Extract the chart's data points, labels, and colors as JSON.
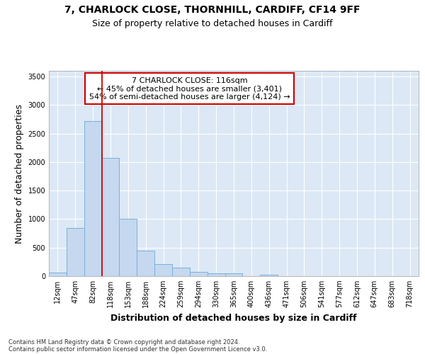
{
  "title1": "7, CHARLOCK CLOSE, THORNHILL, CARDIFF, CF14 9FF",
  "title2": "Size of property relative to detached houses in Cardiff",
  "xlabel": "Distribution of detached houses by size in Cardiff",
  "ylabel": "Number of detached properties",
  "categories": [
    "12sqm",
    "47sqm",
    "82sqm",
    "118sqm",
    "153sqm",
    "188sqm",
    "224sqm",
    "259sqm",
    "294sqm",
    "330sqm",
    "365sqm",
    "400sqm",
    "436sqm",
    "471sqm",
    "506sqm",
    "541sqm",
    "577sqm",
    "612sqm",
    "647sqm",
    "683sqm",
    "718sqm"
  ],
  "values": [
    65,
    845,
    2720,
    2070,
    1010,
    450,
    210,
    145,
    70,
    55,
    50,
    0,
    30,
    0,
    0,
    0,
    0,
    0,
    0,
    0,
    0
  ],
  "bar_color": "#c5d8ef",
  "bar_edge_color": "#7ab0d8",
  "vline_x": 3,
  "vline_color": "#cc0000",
  "annotation_line1": "7 CHARLOCK CLOSE: 116sqm",
  "annotation_line2": "← 45% of detached houses are smaller (3,401)",
  "annotation_line3": "54% of semi-detached houses are larger (4,124) →",
  "annotation_box_color": "#ffffff",
  "annotation_border_color": "#cc0000",
  "ylim": [
    0,
    3600
  ],
  "yticks": [
    0,
    500,
    1000,
    1500,
    2000,
    2500,
    3000,
    3500
  ],
  "footer1": "Contains HM Land Registry data © Crown copyright and database right 2024.",
  "footer2": "Contains public sector information licensed under the Open Government Licence v3.0.",
  "fig_bg_color": "#ffffff",
  "plot_bg_color": "#dce8f5",
  "grid_color": "#ffffff",
  "title1_fontsize": 10,
  "title2_fontsize": 9,
  "tick_fontsize": 7,
  "label_fontsize": 9,
  "footer_fontsize": 6
}
